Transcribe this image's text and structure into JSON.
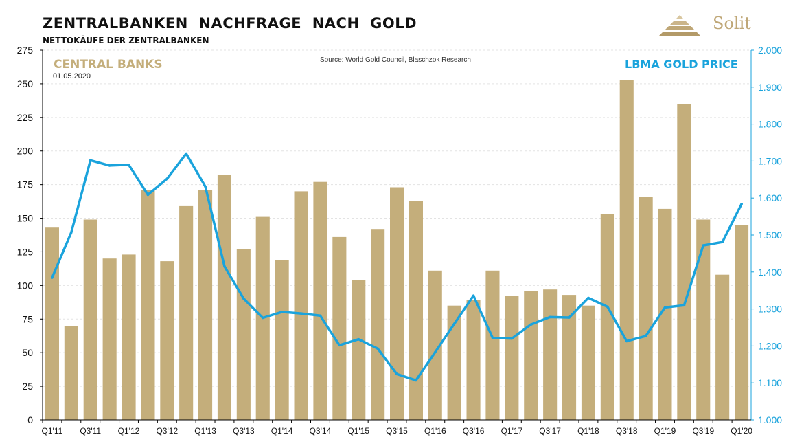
{
  "header": {
    "title": "ZENTRALBANKEN  NACHFRAGE  NACH  GOLD",
    "subtitle": "NETTOKÄUFE DER ZENTRALBANKEN",
    "logo_text": "Solit"
  },
  "chart_data": {
    "type": "bar",
    "labels": {
      "central_banks": "CENTRAL BANKS",
      "date": "01.05.2020",
      "source": "Source: World Gold Council, Blaschzok Research",
      "gold_price": "LBMA GOLD PRICE"
    },
    "categories": [
      "Q1'11",
      "Q2'11",
      "Q3'11",
      "Q4'11",
      "Q1'12",
      "Q2'12",
      "Q3'12",
      "Q4'12",
      "Q1'13",
      "Q2'13",
      "Q3'13",
      "Q4'13",
      "Q1'14",
      "Q2'14",
      "Q3'14",
      "Q4'14",
      "Q1'15",
      "Q2'15",
      "Q3'15",
      "Q4'15",
      "Q1'16",
      "Q2'16",
      "Q3'16",
      "Q4'16",
      "Q1'17",
      "Q2'17",
      "Q3'17",
      "Q4'17",
      "Q1'18",
      "Q2'18",
      "Q3'18",
      "Q4'18",
      "Q1'19",
      "Q2'19",
      "Q3'19",
      "Q4'19",
      "Q1'20"
    ],
    "x_tick_labels": [
      "Q1'11",
      "",
      "Q3'11",
      "",
      "Q1'12",
      "",
      "Q3'12",
      "",
      "Q1'13",
      "",
      "Q3'13",
      "",
      "Q1'14",
      "",
      "Q3'14",
      "",
      "Q1'15",
      "",
      "Q3'15",
      "",
      "Q1'16",
      "",
      "Q3'16",
      "",
      "Q1'17",
      "",
      "Q3'17",
      "",
      "Q1'18",
      "",
      "Q3'18",
      "",
      "Q1'19",
      "",
      "Q3'19",
      "",
      "Q1'20"
    ],
    "series": [
      {
        "axis": "left",
        "color": "#c4ae7b",
        "kind": "bar",
        "values": [
          143,
          70,
          149,
          120,
          123,
          171,
          118,
          159,
          171,
          182,
          127,
          151,
          119,
          170,
          177,
          136,
          104,
          142,
          173,
          163,
          111,
          85,
          89,
          111,
          92,
          96,
          97,
          93,
          85,
          153,
          253,
          166,
          157,
          235,
          149,
          108,
          145
        ]
      },
      {
        "axis": "right",
        "color": "#1aa3dc",
        "kind": "line",
        "values": [
          1385,
          1507,
          1702,
          1688,
          1690,
          1609,
          1652,
          1720,
          1631,
          1415,
          1328,
          1276,
          1292,
          1288,
          1282,
          1202,
          1218,
          1193,
          1124,
          1107,
          1183,
          1260,
          1336,
          1222,
          1220,
          1258,
          1278,
          1277,
          1330,
          1306,
          1213,
          1227,
          1304,
          1310,
          1472,
          1481,
          1584
        ]
      }
    ],
    "ylim_left": [
      0,
      275
    ],
    "yticks_left": [
      "0",
      "25",
      "50",
      "75",
      "100",
      "125",
      "150",
      "175",
      "200",
      "225",
      "250",
      "275"
    ],
    "ylim_right": [
      1000,
      2000
    ],
    "yticks_right": [
      "1.000",
      "1.100",
      "1.200",
      "1.300",
      "1.400",
      "1.500",
      "1.600",
      "1.700",
      "1.800",
      "1.900",
      "2.000"
    ],
    "grid": true
  }
}
